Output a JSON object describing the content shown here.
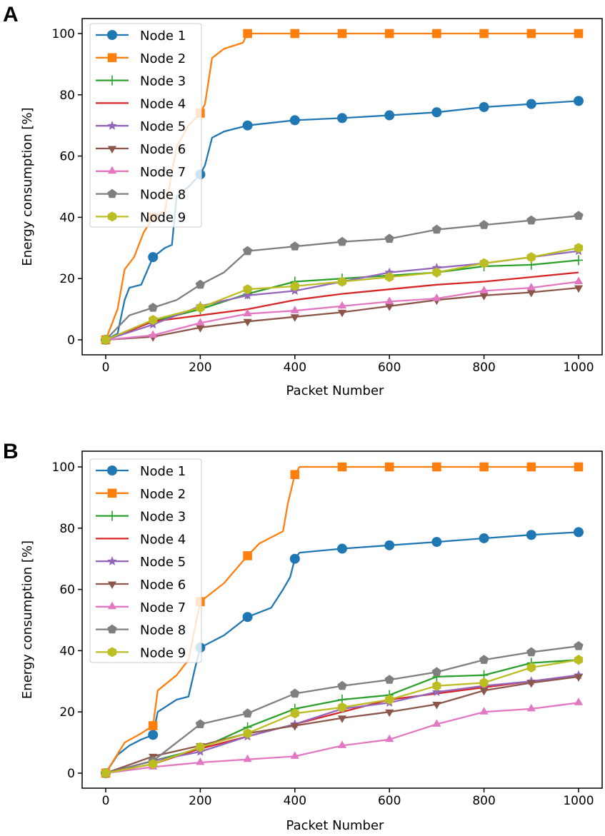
{
  "chart_data": [
    {
      "panel_label": "A",
      "type": "line",
      "title": "",
      "xlabel": "Packet Number",
      "ylabel": "Energy consumption [%]",
      "xlim": [
        -50,
        1050
      ],
      "ylim": [
        -5,
        105
      ],
      "xticks": [
        0,
        200,
        400,
        600,
        800,
        1000
      ],
      "yticks": [
        0,
        20,
        40,
        60,
        80,
        100
      ],
      "grid": false,
      "legend_position": "upper-left",
      "marker_every": 100,
      "series": [
        {
          "name": "Node 1",
          "color": "#1f77b4",
          "marker": "circle",
          "x": [
            0,
            25,
            40,
            50,
            75,
            100,
            125,
            140,
            150,
            175,
            200,
            210,
            225,
            250,
            300,
            400,
            500,
            600,
            700,
            800,
            900,
            1000
          ],
          "y": [
            0,
            2,
            13,
            17,
            18,
            27,
            30,
            31,
            47,
            50,
            54,
            57,
            66,
            68,
            70,
            71.7,
            72.4,
            73.3,
            74.3,
            76,
            77,
            78
          ]
        },
        {
          "name": "Node 2",
          "color": "#ff7f0e",
          "marker": "square",
          "x": [
            0,
            25,
            40,
            60,
            80,
            100,
            125,
            150,
            175,
            200,
            210,
            225,
            250,
            290,
            300,
            1000
          ],
          "y": [
            0,
            10,
            23,
            27,
            35,
            40,
            42,
            63,
            70,
            74,
            77,
            92,
            95,
            97,
            100,
            100
          ]
        },
        {
          "name": "Node 3",
          "color": "#2ca02c",
          "marker": "plus",
          "x": [
            0,
            100,
            200,
            300,
            400,
            500,
            600,
            700,
            800,
            900,
            1000
          ],
          "y": [
            0,
            6,
            10,
            15,
            19,
            20,
            21,
            22,
            24,
            24.5,
            26
          ]
        },
        {
          "name": "Node 4",
          "color": "#d62728",
          "marker": "none",
          "x": [
            0,
            100,
            200,
            300,
            400,
            500,
            600,
            700,
            800,
            900,
            1000
          ],
          "y": [
            0,
            6,
            8,
            10,
            13,
            15,
            16.5,
            18,
            19,
            20.5,
            22
          ]
        },
        {
          "name": "Node 5",
          "color": "#9467bd",
          "marker": "star",
          "x": [
            0,
            100,
            200,
            300,
            400,
            500,
            600,
            700,
            800,
            900,
            1000
          ],
          "y": [
            0,
            5,
            11,
            14.5,
            16,
            19,
            22,
            23.5,
            25,
            27,
            29
          ]
        },
        {
          "name": "Node 6",
          "color": "#8c564b",
          "marker": "triangle-down",
          "x": [
            0,
            100,
            200,
            300,
            400,
            500,
            600,
            700,
            800,
            900,
            1000
          ],
          "y": [
            0,
            1,
            4,
            6,
            7.5,
            9,
            11,
            13,
            14.5,
            15.5,
            17
          ]
        },
        {
          "name": "Node 7",
          "color": "#e377c2",
          "marker": "triangle-up",
          "x": [
            0,
            100,
            200,
            300,
            400,
            500,
            600,
            700,
            800,
            900,
            1000
          ],
          "y": [
            0,
            1.5,
            5.5,
            8.5,
            9.5,
            11,
            12.5,
            13.5,
            16,
            17,
            19
          ]
        },
        {
          "name": "Node 8",
          "color": "#7f7f7f",
          "marker": "pentagon",
          "x": [
            0,
            50,
            100,
            150,
            200,
            250,
            300,
            400,
            500,
            600,
            700,
            800,
            900,
            1000
          ],
          "y": [
            0,
            8,
            10.5,
            13,
            18,
            22,
            29,
            30.5,
            32,
            33,
            36,
            37.5,
            39,
            40.5
          ]
        },
        {
          "name": "Node 9",
          "color": "#bcbd22",
          "marker": "hexagon",
          "x": [
            0,
            100,
            200,
            300,
            400,
            500,
            600,
            700,
            800,
            900,
            1000
          ],
          "y": [
            0,
            6.5,
            10.5,
            16.5,
            17.5,
            19,
            20.5,
            22,
            25,
            27,
            30
          ]
        }
      ]
    },
    {
      "panel_label": "B",
      "type": "line",
      "title": "",
      "xlabel": "Packet Number",
      "ylabel": "Energy consumption [%]",
      "xlim": [
        -50,
        1050
      ],
      "ylim": [
        -5,
        105
      ],
      "xticks": [
        0,
        200,
        400,
        600,
        800,
        1000
      ],
      "yticks": [
        0,
        20,
        40,
        60,
        80,
        100
      ],
      "grid": false,
      "legend_position": "upper-left",
      "marker_every": 100,
      "series": [
        {
          "name": "Node 1",
          "color": "#1f77b4",
          "marker": "circle",
          "x": [
            0,
            25,
            50,
            75,
            100,
            110,
            150,
            175,
            190,
            200,
            250,
            300,
            350,
            375,
            390,
            400,
            410,
            500,
            600,
            700,
            800,
            900,
            1000
          ],
          "y": [
            0,
            6,
            9,
            11,
            12.5,
            20,
            24,
            25,
            35,
            41,
            45,
            51,
            54,
            60,
            64,
            70,
            72,
            73.3,
            74.4,
            75.5,
            76.7,
            77.8,
            78.7
          ]
        },
        {
          "name": "Node 2",
          "color": "#ff7f0e",
          "marker": "square",
          "x": [
            0,
            20,
            40,
            75,
            100,
            110,
            150,
            175,
            200,
            250,
            300,
            325,
            375,
            385,
            400,
            410,
            1000
          ],
          "y": [
            0,
            5,
            10,
            13,
            15.5,
            27,
            32,
            37,
            56,
            62,
            71,
            75,
            79,
            88,
            97.5,
            100,
            100
          ]
        },
        {
          "name": "Node 3",
          "color": "#2ca02c",
          "marker": "plus",
          "x": [
            0,
            100,
            200,
            300,
            400,
            500,
            600,
            700,
            800,
            900,
            1000
          ],
          "y": [
            0,
            4,
            8,
            15,
            21,
            24,
            25.5,
            31.5,
            32,
            36,
            37
          ]
        },
        {
          "name": "Node 4",
          "color": "#d62728",
          "marker": "none",
          "x": [
            0,
            100,
            200,
            300,
            400,
            500,
            600,
            700,
            800,
            900,
            1000
          ],
          "y": [
            0,
            3,
            8,
            12,
            16,
            20,
            24,
            26,
            28,
            30,
            32
          ]
        },
        {
          "name": "Node 5",
          "color": "#9467bd",
          "marker": "star",
          "x": [
            0,
            100,
            200,
            300,
            400,
            500,
            600,
            700,
            800,
            900,
            1000
          ],
          "y": [
            0,
            4,
            7,
            12,
            16,
            21,
            23,
            26.5,
            28.5,
            30,
            32
          ]
        },
        {
          "name": "Node 6",
          "color": "#8c564b",
          "marker": "triangle-down",
          "x": [
            0,
            100,
            200,
            300,
            400,
            500,
            600,
            700,
            800,
            900,
            1000
          ],
          "y": [
            0,
            5.5,
            9,
            13,
            15.5,
            18,
            20,
            22.5,
            27,
            29.5,
            31.5
          ]
        },
        {
          "name": "Node 7",
          "color": "#e377c2",
          "marker": "triangle-up",
          "x": [
            0,
            100,
            200,
            300,
            400,
            500,
            600,
            700,
            800,
            900,
            1000
          ],
          "y": [
            0,
            2,
            3.5,
            4.5,
            5.5,
            9,
            11,
            16,
            20,
            21,
            23
          ]
        },
        {
          "name": "Node 8",
          "color": "#7f7f7f",
          "marker": "pentagon",
          "x": [
            0,
            100,
            200,
            300,
            400,
            500,
            600,
            700,
            800,
            900,
            1000
          ],
          "y": [
            0,
            4,
            16,
            19.5,
            26,
            28.5,
            30.5,
            33,
            37,
            39.5,
            41.5
          ]
        },
        {
          "name": "Node 9",
          "color": "#bcbd22",
          "marker": "hexagon",
          "x": [
            0,
            100,
            200,
            300,
            400,
            500,
            600,
            700,
            800,
            900,
            1000
          ],
          "y": [
            0,
            3,
            8.5,
            13,
            19.5,
            21.5,
            24,
            28.5,
            29.5,
            34.5,
            37
          ]
        }
      ]
    }
  ]
}
